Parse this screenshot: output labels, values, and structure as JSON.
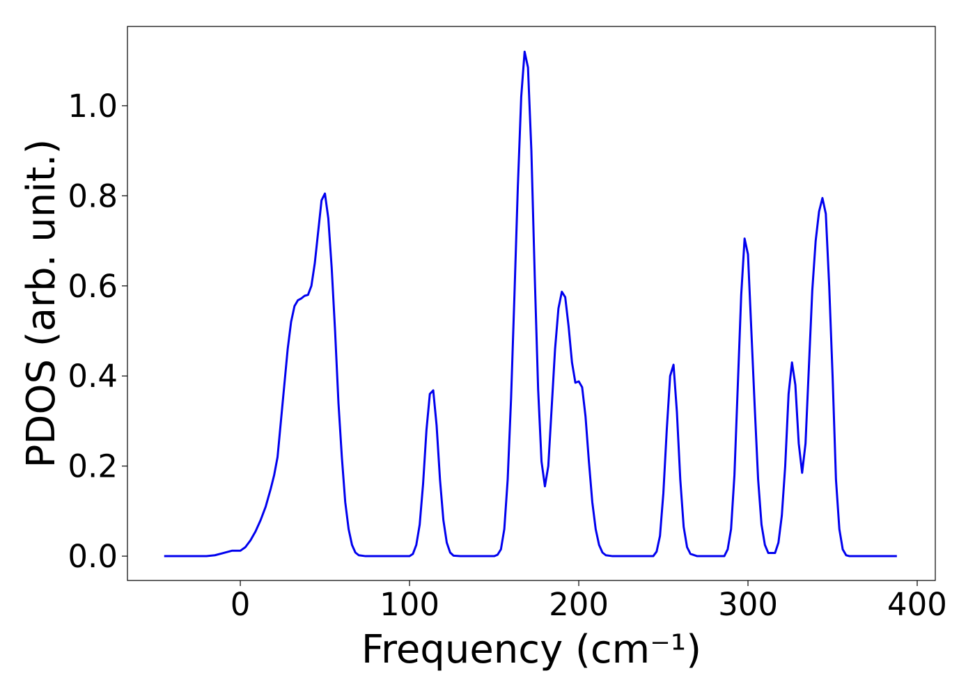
{
  "chart_data": {
    "type": "line",
    "xlabel": "Frequency (cm⁻¹)",
    "ylabel": "PDOS (arb. unit.)",
    "xlim": [
      -66.7,
      410.7
    ],
    "ylim": [
      -0.054,
      1.176
    ],
    "xticks": [
      0,
      100,
      200,
      300,
      400
    ],
    "yticks": [
      {
        "value": 0,
        "label": "0.0"
      },
      0.2,
      0.4,
      0.6,
      0.8,
      {
        "value": 1,
        "label": "1.0"
      }
    ],
    "grid": false,
    "x": [
      -45,
      -20,
      -15,
      -10,
      -5,
      0,
      3,
      6,
      9,
      12,
      15,
      18,
      20,
      22,
      24,
      26,
      28,
      30,
      32,
      34,
      36,
      38,
      40,
      42,
      44,
      46,
      48,
      50,
      52,
      54,
      56,
      58,
      60,
      62,
      64,
      66,
      68,
      70,
      74,
      100,
      102,
      104,
      106,
      108,
      110,
      112,
      114,
      116,
      118,
      120,
      122,
      124,
      126,
      130,
      150,
      152,
      154,
      156,
      158,
      160,
      162,
      164,
      166,
      168,
      170,
      172,
      174,
      176,
      178,
      180,
      182,
      184,
      186,
      188,
      190,
      192,
      194,
      196,
      198,
      200,
      202,
      204,
      206,
      208,
      210,
      212,
      214,
      216,
      220,
      244,
      246,
      248,
      250,
      252,
      254,
      256,
      258,
      260,
      262,
      264,
      266,
      270,
      286,
      288,
      290,
      292,
      294,
      296,
      298,
      300,
      302,
      304,
      306,
      308,
      310,
      312,
      316,
      318,
      320,
      322,
      324,
      326,
      328,
      330,
      332,
      334,
      336,
      338,
      340,
      342,
      344,
      346,
      348,
      350,
      352,
      354,
      356,
      358,
      360,
      364,
      388
    ],
    "series": [
      {
        "name": "PDOS",
        "color": "#0000ee",
        "values": [
          0,
          0,
          0.002,
          0.007,
          0.012,
          0.012,
          0.02,
          0.035,
          0.055,
          0.08,
          0.11,
          0.15,
          0.18,
          0.22,
          0.3,
          0.38,
          0.46,
          0.52,
          0.555,
          0.568,
          0.572,
          0.578,
          0.58,
          0.6,
          0.65,
          0.72,
          0.79,
          0.805,
          0.75,
          0.64,
          0.5,
          0.34,
          0.22,
          0.12,
          0.06,
          0.025,
          0.008,
          0.002,
          0,
          0,
          0.005,
          0.025,
          0.07,
          0.16,
          0.28,
          0.36,
          0.368,
          0.29,
          0.17,
          0.08,
          0.03,
          0.008,
          0.001,
          0,
          0,
          0.003,
          0.015,
          0.06,
          0.17,
          0.35,
          0.58,
          0.82,
          1.02,
          1.12,
          1.085,
          0.9,
          0.62,
          0.37,
          0.21,
          0.155,
          0.2,
          0.33,
          0.46,
          0.55,
          0.587,
          0.575,
          0.51,
          0.43,
          0.385,
          0.388,
          0.375,
          0.31,
          0.21,
          0.12,
          0.06,
          0.025,
          0.008,
          0.002,
          0,
          0,
          0.01,
          0.045,
          0.14,
          0.28,
          0.4,
          0.425,
          0.32,
          0.17,
          0.065,
          0.02,
          0.005,
          0,
          0,
          0.015,
          0.06,
          0.18,
          0.38,
          0.58,
          0.705,
          0.67,
          0.5,
          0.33,
          0.17,
          0.07,
          0.025,
          0.007,
          0.007,
          0.03,
          0.09,
          0.2,
          0.36,
          0.43,
          0.38,
          0.25,
          0.185,
          0.25,
          0.42,
          0.59,
          0.7,
          0.765,
          0.795,
          0.76,
          0.6,
          0.4,
          0.17,
          0.06,
          0.015,
          0.002,
          0,
          0,
          0
        ]
      }
    ]
  }
}
